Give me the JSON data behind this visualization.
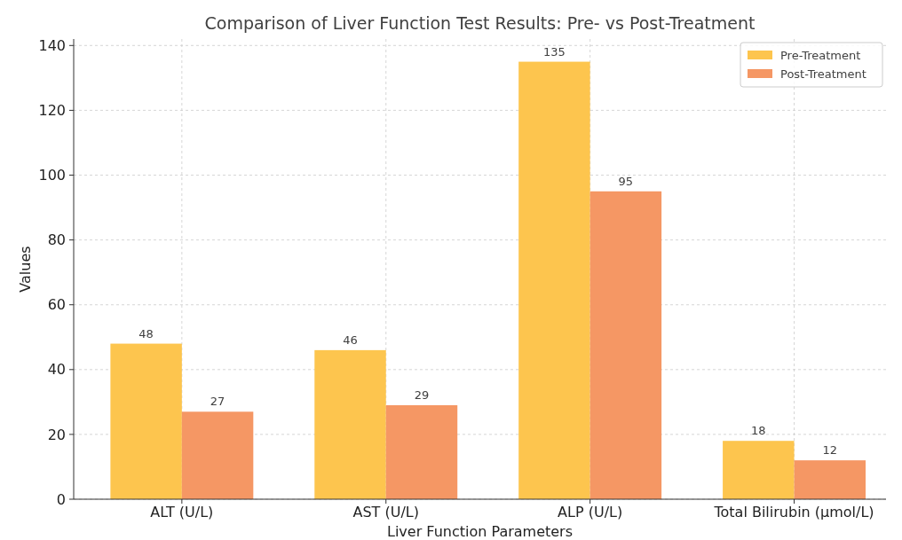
{
  "chart_data": {
    "type": "bar",
    "title": "Comparison of Liver Function Test Results: Pre- vs Post-Treatment",
    "xlabel": "Liver Function Parameters",
    "ylabel": "Values",
    "categories": [
      "ALT (U/L)",
      "AST (U/L)",
      "ALP (U/L)",
      "Total Bilirubin (µmol/L)"
    ],
    "series": [
      {
        "name": "Pre-Treatment",
        "color": "#fdc54e",
        "values": [
          48,
          46,
          135,
          18
        ]
      },
      {
        "name": "Post-Treatment",
        "color": "#f59764",
        "values": [
          27,
          29,
          95,
          12
        ]
      }
    ],
    "ylim": [
      0,
      142
    ],
    "yticks": [
      0,
      20,
      40,
      60,
      80,
      100,
      120,
      140
    ],
    "grid": true,
    "legend": "top right",
    "data_labels": true
  }
}
